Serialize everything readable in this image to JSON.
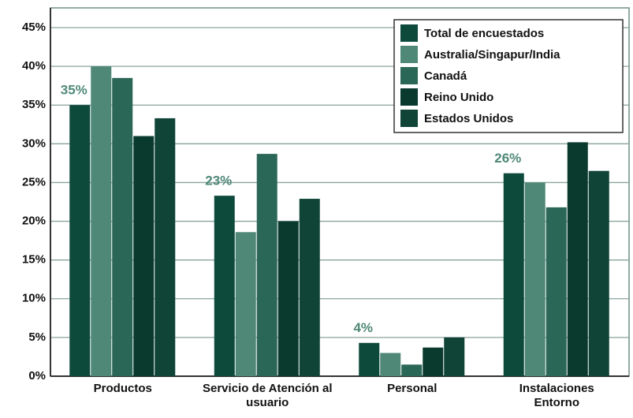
{
  "chart_data": {
    "type": "bar",
    "categories": [
      "Productos",
      "Servicio de Atención al usuario",
      "Personal",
      "Instalaciones Entorno"
    ],
    "series": [
      {
        "name": "Total de encuestados",
        "color": "#0e4a3c",
        "values": [
          35,
          23.3,
          4.3,
          26.2
        ],
        "value_labels": [
          "35%",
          "23%",
          "4%",
          "26%"
        ]
      },
      {
        "name": "Australia/Singapur/India",
        "color": "#4f8877",
        "values": [
          40,
          18.6,
          3,
          25
        ]
      },
      {
        "name": "Canadá",
        "color": "#2b6757",
        "values": [
          38.5,
          28.7,
          1.5,
          21.8
        ]
      },
      {
        "name": "Reino Unido",
        "color": "#0a3a2e",
        "values": [
          31,
          20,
          3.7,
          30.2
        ]
      },
      {
        "name": "Estados Unidos",
        "color": "#0f4437",
        "values": [
          33.3,
          22.9,
          5,
          26.5
        ]
      }
    ],
    "ylim": [
      0,
      45
    ],
    "yticks": [
      {
        "value": 0,
        "label": "0%"
      },
      {
        "value": 5,
        "label": "5%"
      },
      {
        "value": 10,
        "label": "10%"
      },
      {
        "value": 15,
        "label": "15%"
      },
      {
        "value": 20,
        "label": "20%"
      },
      {
        "value": 25,
        "label": "25%"
      },
      {
        "value": 30,
        "label": "30%"
      },
      {
        "value": 35,
        "label": "35%"
      },
      {
        "value": 40,
        "label": "40%"
      },
      {
        "value": 45,
        "label": "45%"
      }
    ],
    "grid": true,
    "legend": "upper right"
  }
}
